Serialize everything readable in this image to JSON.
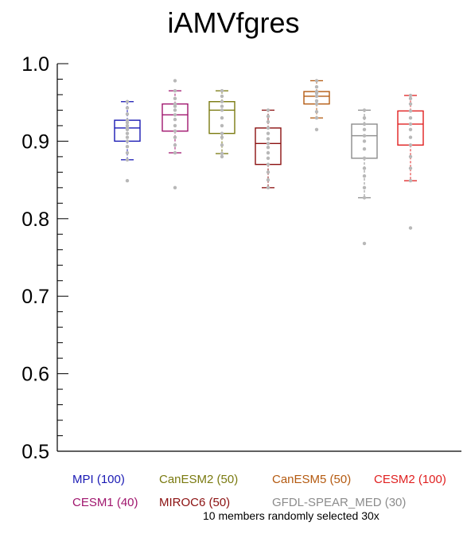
{
  "chart_data": {
    "type": "box",
    "title": "iAMVfgres",
    "ylim": [
      0.5,
      1.0
    ],
    "yticks": [
      "0.5",
      "0.6",
      "0.7",
      "0.8",
      "0.9",
      "1.0"
    ],
    "footnote": "10 members randomly selected 30x",
    "series": [
      {
        "name": "MPI",
        "count_label": "MPI (100)",
        "color": "#1a1ab4",
        "whisker_low": 0.876,
        "q1": 0.9,
        "median": 0.917,
        "q3": 0.927,
        "whisker_high": 0.951,
        "points": [
          0.849,
          0.876,
          0.885,
          0.893,
          0.9,
          0.905,
          0.91,
          0.915,
          0.917,
          0.92,
          0.924,
          0.927,
          0.935,
          0.943,
          0.951
        ]
      },
      {
        "name": "CESM1",
        "count_label": "CESM1 (40)",
        "color": "#a0166e",
        "whisker_low": 0.885,
        "q1": 0.913,
        "median": 0.934,
        "q3": 0.948,
        "whisker_high": 0.965,
        "points": [
          0.84,
          0.885,
          0.895,
          0.905,
          0.913,
          0.92,
          0.928,
          0.934,
          0.94,
          0.945,
          0.948,
          0.955,
          0.965,
          0.978
        ]
      },
      {
        "name": "CanESM2",
        "count_label": "CanESM2 (50)",
        "color": "#7a7a10",
        "whisker_low": 0.884,
        "q1": 0.91,
        "median": 0.94,
        "q3": 0.951,
        "whisker_high": 0.965,
        "points": [
          0.88,
          0.884,
          0.895,
          0.905,
          0.91,
          0.92,
          0.93,
          0.94,
          0.945,
          0.951,
          0.958,
          0.965
        ]
      },
      {
        "name": "MIROC6",
        "count_label": "MIROC6 (50)",
        "color": "#8b1010",
        "whisker_low": 0.84,
        "q1": 0.87,
        "median": 0.897,
        "q3": 0.917,
        "whisker_high": 0.94,
        "points": [
          0.84,
          0.85,
          0.86,
          0.87,
          0.878,
          0.885,
          0.892,
          0.897,
          0.903,
          0.91,
          0.917,
          0.925,
          0.932,
          0.94
        ]
      },
      {
        "name": "CanESM5",
        "count_label": "CanESM5 (50)",
        "color": "#b45a10",
        "whisker_low": 0.93,
        "q1": 0.948,
        "median": 0.958,
        "q3": 0.964,
        "whisker_high": 0.978,
        "points": [
          0.915,
          0.93,
          0.938,
          0.948,
          0.952,
          0.958,
          0.962,
          0.964,
          0.97,
          0.978
        ]
      },
      {
        "name": "GFDL-SPEAR_MED",
        "count_label": "GFDL-SPEAR_MED (30)",
        "color": "#8c8c8c",
        "whisker_low": 0.827,
        "q1": 0.878,
        "median": 0.907,
        "q3": 0.922,
        "whisker_high": 0.94,
        "points": [
          0.768,
          0.827,
          0.84,
          0.855,
          0.865,
          0.878,
          0.89,
          0.9,
          0.907,
          0.915,
          0.922,
          0.93,
          0.94
        ]
      },
      {
        "name": "CESM2",
        "count_label": "CESM2 (100)",
        "color": "#e02020",
        "whisker_low": 0.849,
        "q1": 0.895,
        "median": 0.922,
        "q3": 0.939,
        "whisker_high": 0.959,
        "points": [
          0.788,
          0.849,
          0.865,
          0.88,
          0.895,
          0.905,
          0.915,
          0.922,
          0.93,
          0.939,
          0.948,
          0.955,
          0.959
        ]
      }
    ]
  },
  "legend_rows": [
    [
      "MPI",
      "CanESM2",
      "CanESM5",
      "CESM2"
    ],
    [
      "CESM1",
      "MIROC6",
      "GFDL-SPEAR_MED"
    ]
  ]
}
